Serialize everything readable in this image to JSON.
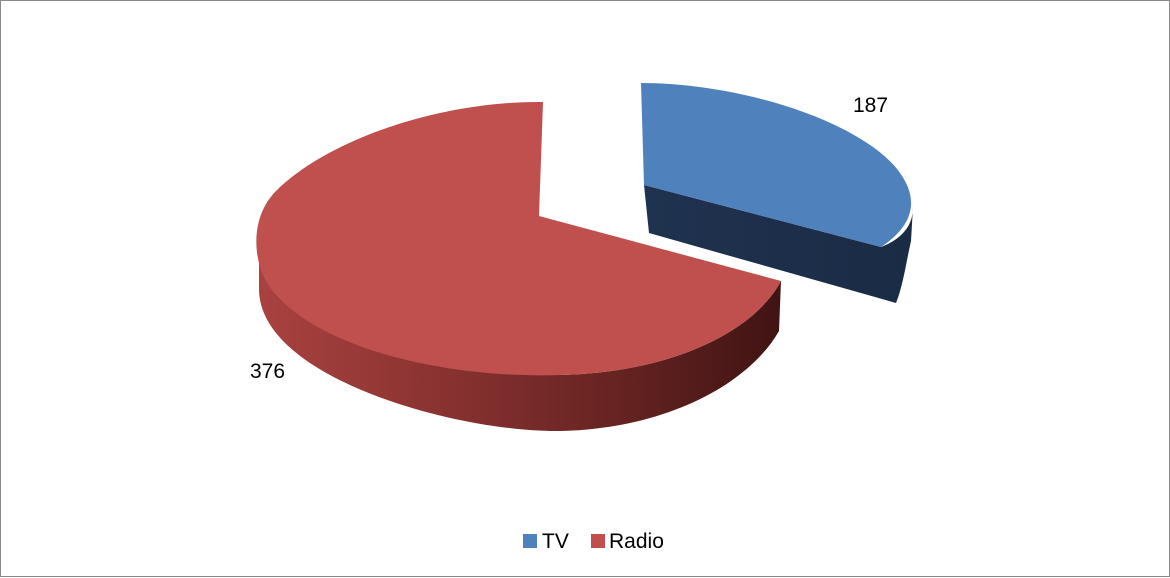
{
  "chart_data": {
    "type": "pie",
    "style": "3d-exploded",
    "series": [
      {
        "labels": [
          "TV",
          "Radio"
        ],
        "values": [
          187,
          376
        ],
        "colors": [
          "#4f81bd",
          "#c0504d"
        ]
      }
    ],
    "data_labels": [
      "187",
      "376"
    ],
    "legend": {
      "position": "bottom",
      "entries": [
        "TV",
        "Radio"
      ]
    }
  }
}
